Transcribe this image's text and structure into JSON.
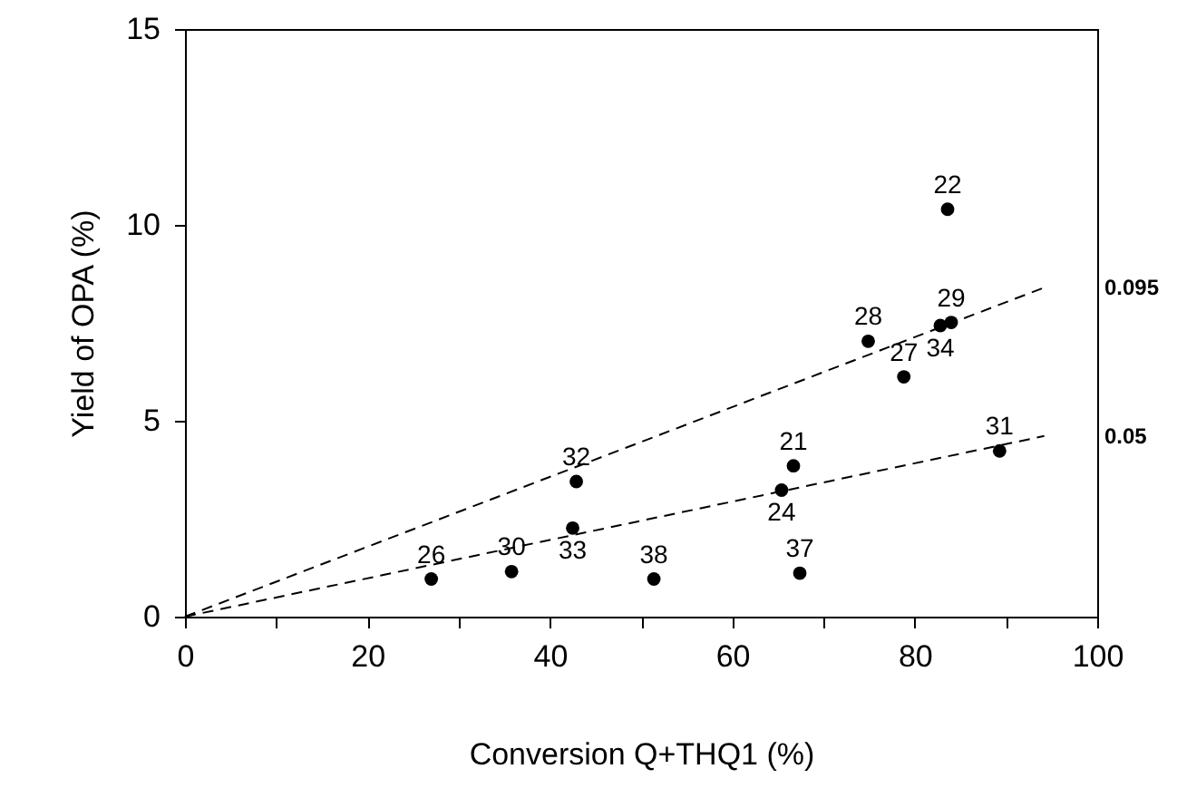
{
  "chart_data": {
    "type": "scatter",
    "xlabel": "Conversion Q+THQ1 (%)",
    "ylabel": "Yield of OPA (%)",
    "xlim": [
      0,
      100
    ],
    "ylim": [
      0,
      15
    ],
    "xticks": [
      0,
      {
        "value": 10,
        "label": null
      },
      20,
      {
        "value": 30,
        "label": null
      },
      40,
      {
        "value": 50,
        "label": null
      },
      60,
      {
        "value": 70,
        "label": null
      },
      80,
      {
        "value": 90,
        "label": null
      },
      100
    ],
    "yticks": [
      0,
      5,
      10,
      15
    ],
    "grid": false,
    "series": [
      {
        "marker": "circle",
        "color": "#000000",
        "x": [
          27.0,
          35.8,
          42.9,
          42.5,
          51.4,
          83.6,
          84.0,
          82.8,
          74.9,
          78.8,
          89.3,
          66.7,
          65.4,
          67.4
        ],
        "values": [
          0.96,
          1.15,
          3.45,
          2.26,
          0.96,
          10.4,
          7.51,
          7.43,
          7.03,
          6.12,
          4.23,
          3.85,
          3.23,
          1.11
        ]
      },
      {
        "type": "line",
        "name": "0.095",
        "color": "#000000",
        "line_style": "dashed",
        "x": [
          0,
          94.3
        ],
        "values": [
          0,
          8.41
        ]
      },
      {
        "type": "line",
        "name": "0.05",
        "color": "#000000",
        "line_style": "dashed",
        "x": [
          0,
          94.2
        ],
        "values": [
          0,
          4.61
        ]
      }
    ],
    "annotations": [
      {
        "text": "26",
        "x": 27.0,
        "y": 0.96
      },
      {
        "text": "30",
        "x": 35.8,
        "y": 1.15
      },
      {
        "text": "32",
        "x": 42.9,
        "y": 3.45
      },
      {
        "text": "33",
        "x": 42.5,
        "y": 2.26
      },
      {
        "text": "38",
        "x": 51.4,
        "y": 0.96
      },
      {
        "text": "22",
        "x": 83.6,
        "y": 10.4
      },
      {
        "text": "29",
        "x": 84.0,
        "y": 7.51
      },
      {
        "text": "34",
        "x": 82.8,
        "y": 7.43
      },
      {
        "text": "28",
        "x": 74.9,
        "y": 7.03
      },
      {
        "text": "27",
        "x": 78.8,
        "y": 6.12
      },
      {
        "text": "31",
        "x": 89.3,
        "y": 4.23
      },
      {
        "text": "21",
        "x": 66.7,
        "y": 3.85
      },
      {
        "text": "24",
        "x": 65.4,
        "y": 3.23
      },
      {
        "text": "37",
        "x": 67.4,
        "y": 1.11
      }
    ]
  }
}
